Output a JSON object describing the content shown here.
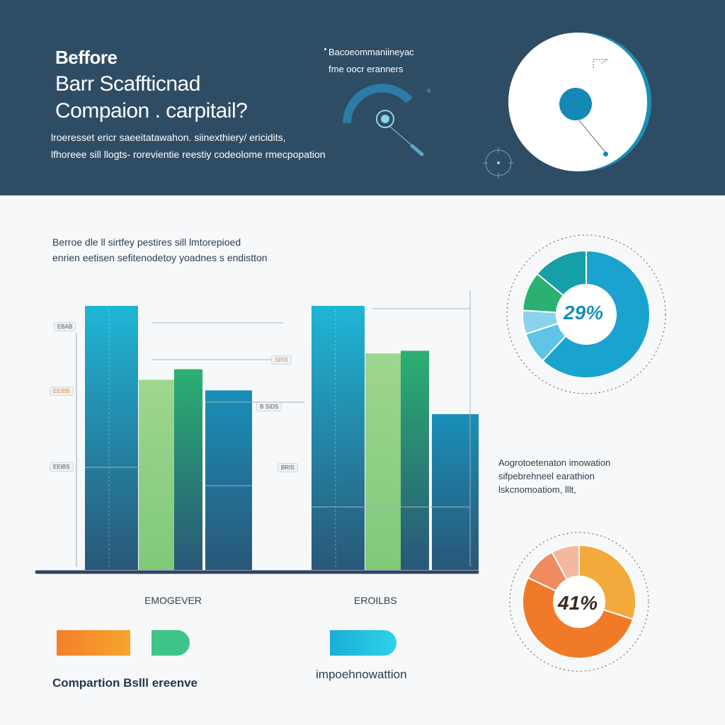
{
  "header": {
    "title_lines": [
      "Beffore",
      "Barr Scaffticnad",
      "Compaion . carpitail?"
    ],
    "subtitle_lines": [
      "lroeresset ericr saeeitatawahon. siinexthiery/ ericidits,",
      "lfhoreee sill llogts- rorevientie reestiy codeolome rmecpopation"
    ],
    "note_lines": [
      "Bacoeommaniineyac",
      "fme oocr eranners"
    ]
  },
  "section": {
    "heading_lines": [
      "Berroe dle ll sirtfey pestires sill lmtorepioed",
      "enrien eetisen sefitenodetoy yoadnes s endistton"
    ]
  },
  "chart_data": {
    "type": "bar",
    "title": "",
    "xlabel": "",
    "ylabel": "",
    "ylim": [
      0,
      100
    ],
    "grid": false,
    "categories": [
      "EMOGEVER",
      "EROILBS"
    ],
    "series": [
      {
        "color": "#1fb6d6",
        "values": [
          100,
          100
        ]
      },
      {
        "color": "#9fd68e",
        "values": [
          72,
          82
        ]
      },
      {
        "color": "#2ab072",
        "values": [
          76,
          83
        ]
      },
      {
        "color": "#1a8fb8",
        "values": [
          68,
          59
        ]
      }
    ],
    "y_tags": [
      "EBAB",
      "EEIBB",
      "EEIBS",
      "SRIS",
      "B SIDS",
      "BRIS"
    ],
    "legend": [
      {
        "name": "Compartion Bs",
        "color_from": "#f57f2b",
        "color_to": "#f5a52e"
      },
      {
        "name": "ll ereenve",
        "color_from": "#2ab072",
        "color_to": "#4fcf99"
      },
      {
        "name": "impoehnowattion",
        "color_from": "#1fb6d6",
        "color_to": "#2ed2ea"
      }
    ],
    "legend_left_label": "Compartion Bslll ereenve",
    "legend_right_label": "impoehnowattion"
  },
  "donuts": [
    {
      "label": "29%",
      "value": 29,
      "label_color": "#1a8fb8",
      "segments": [
        {
          "color": "#1aa3cf",
          "value": 62
        },
        {
          "color": "#5fc4e6",
          "value": 8
        },
        {
          "color": "#8ad3ef",
          "value": 6
        },
        {
          "color": "#2ab072",
          "value": 10
        },
        {
          "color": "#15a0a8",
          "value": 14
        }
      ]
    },
    {
      "label": "41%",
      "value": 41,
      "label_color": "#3a2a20",
      "segments": [
        {
          "color": "#f4a93b",
          "value": 30
        },
        {
          "color": "#f07a27",
          "value": 52
        },
        {
          "color": "#f08a60",
          "value": 10
        },
        {
          "color": "#f4b89f",
          "value": 8
        }
      ]
    }
  ],
  "side_note": {
    "lines": [
      "Aogrotoetenaton imowation",
      "sifpebrehneel earathion",
      "lskcnomoatiom, lllt,"
    ]
  }
}
